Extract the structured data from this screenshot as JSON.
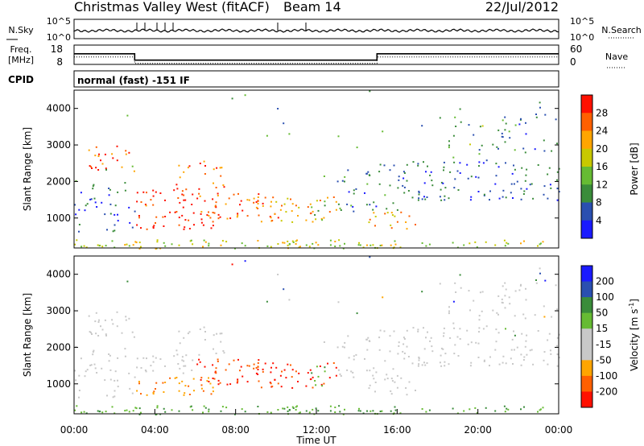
{
  "header": {
    "title": "Christmas Valley West (fitACF)",
    "beam": "Beam 14",
    "date": "22/Jul/2012"
  },
  "nsky_panel": {
    "left_label": "N.Sky",
    "right_label": "N.Search",
    "left_ticks": [
      "10^5",
      "10^0"
    ],
    "right_ticks": [
      "10^5",
      "10^0"
    ]
  },
  "freq_panel": {
    "left_label_line1": "Freq.",
    "left_label_line2": "[MHz]",
    "right_label": "Nave",
    "left_ticks": [
      "18",
      "8"
    ],
    "right_ticks": [
      "60",
      "0"
    ],
    "freq_steps_mhz": [
      [
        0,
        13.5
      ],
      [
        3.0,
        13.5
      ],
      [
        3.0,
        10.2
      ],
      [
        15.0,
        10.2
      ],
      [
        15.0,
        13.5
      ],
      [
        24,
        13.5
      ]
    ]
  },
  "cpid_panel": {
    "label": "CPID",
    "mode_text": "normal (fast) -151 IF"
  },
  "chart_data": [
    {
      "type": "heatmap",
      "name": "power",
      "ylabel": "Slant Range [km]",
      "ylim": [
        180,
        4500
      ],
      "yticks": [
        "1000",
        "2000",
        "3000",
        "4000"
      ],
      "colorbar_label": "Power [dB]",
      "colorbar_ticks": [
        "4",
        "8",
        "12",
        "16",
        "20",
        "24",
        "28"
      ],
      "colorbar_range": [
        0,
        32
      ],
      "colorbar_colors": [
        "#1a1aff",
        "#2a4fb0",
        "#3a8c3a",
        "#66bb33",
        "#c8c800",
        "#ffa500",
        "#ff6000",
        "#ff1000"
      ],
      "grid": false
    },
    {
      "type": "heatmap",
      "name": "velocity",
      "ylabel": "Slant Range [km]",
      "ylim": [
        180,
        4500
      ],
      "yticks": [
        "1000",
        "2000",
        "3000",
        "4000"
      ],
      "colorbar_label": "Velocity [m s",
      "colorbar_label_sup": "-1",
      "colorbar_label_end": "]",
      "colorbar_ticks": [
        "200",
        "100",
        "50",
        "15",
        "-15",
        "-50",
        "-100",
        "-200"
      ],
      "colorbar_colors": [
        "#1a1aff",
        "#2a4fb0",
        "#3a8c3a",
        "#66bb33",
        "#c8c8c8",
        "#c8c8c8",
        "#ffa500",
        "#ff6000",
        "#ff1000"
      ],
      "xlabel": "Time UT",
      "xticks": [
        "00:00",
        "04:00",
        "08:00",
        "12:00",
        "16:00",
        "20:00",
        "00:00"
      ],
      "xlim_hours": [
        0,
        24
      ],
      "grid": false
    }
  ]
}
